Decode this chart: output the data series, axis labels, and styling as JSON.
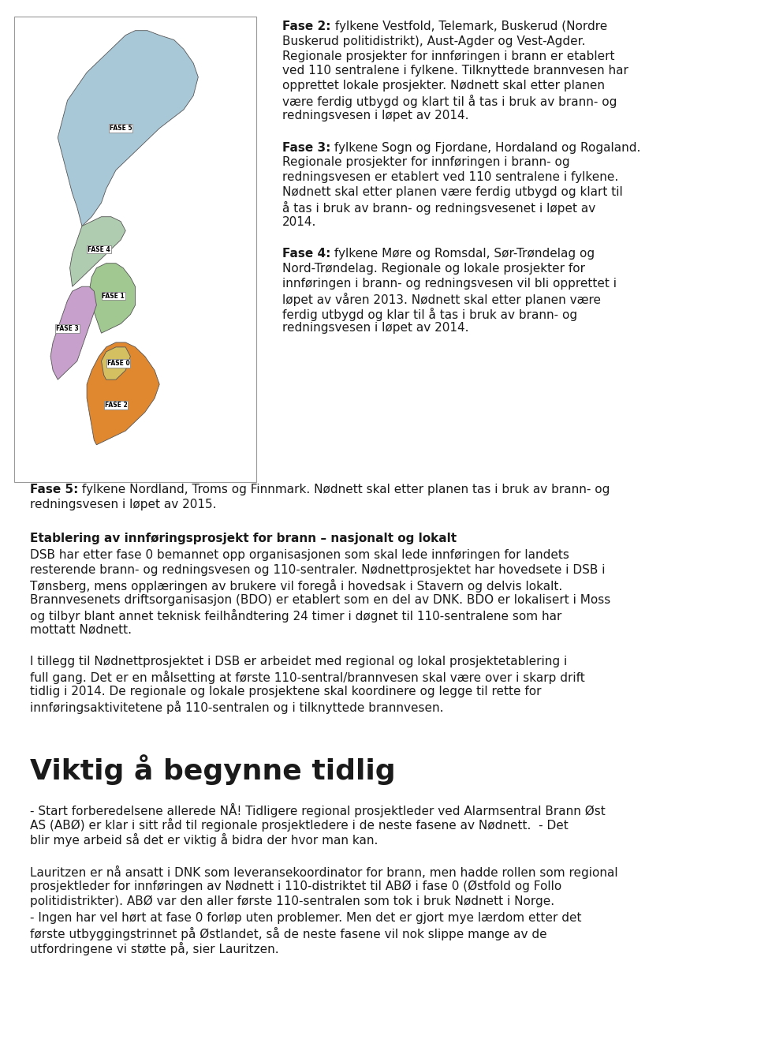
{
  "background_color": "#ffffff",
  "page_width": 9.6,
  "page_height": 13.41,
  "text_color": "#1a1a1a",
  "fase2_title": "Fase 2:",
  "fase2_body": " fylkene Vestfold, Telemark, Buskerud (Nordre Buskerud politidistrikt), Aust-Agder og Vest-Agder. Regionale prosjekter for innføringen i brann er etablert ved 110 sentralene i fylkene. Tilknyttede brannvesen har opprettet lokale prosjekter. Nødnett skal etter planen være ferdig utbygd og klart til å tas i bruk av brann- og redningsvesen i løpet av 2014.",
  "fase3_title": "Fase 3:",
  "fase3_body": " fylkene Sogn og Fjordane, Hordaland og Rogaland. Regionale prosjekter for innføringen i brann- og redningsvesen er etablert ved 110 sentralene i fylkene. Nødnett skal etter planen være ferdig utbygd og klart til å tas i bruk av brann- og redningsvesenet i løpet av 2014.",
  "fase4_title": "Fase 4:",
  "fase4_body": " fylkene Møre og Romsdal, Sør-Trøndelag og Nord-Trøndelag. Regionale og lokale prosjekter for innføringen i brann- og redningsvesen vil bli opprettet i løpet av våren 2013. Nødnett skal etter planen være ferdig utbygd og klar til å tas i bruk av brann- og redningsvesen i løpet av 2014.",
  "fase5_title": "Fase 5:",
  "fase5_body": " fylkene Nordland, Troms og Finnmark. Nødnett skal etter planen tas i bruk av brann- og redningsvesen i løpet av 2015.",
  "etablering_title": "Etablering av innføringsprosjekt for brann – nasjonalt og lokalt",
  "etablering_body": "DSB har etter fase 0 bemannet opp organisasjonen som skal lede innføringen for landets resterende brann- og redningsvesen og 110-sentraler. Nødnettprosjektet har hovedsete i DSB i Tønsberg, mens opplæringen av brukere vil foregå i hovedsak i Stavern og delvis lokalt. Brannvesenets driftsorganisasjon (BDO) er etablert som en del av DNK. BDO er lokalisert i Moss og tilbyr blant annet teknisk feilhåndtering 24 timer i døgnet til 110-sentralene som har mottatt Nødnett.",
  "para2_body": "I tillegg til Nødnettprosjektet i DSB er arbeidet med regional og lokal prosjektetablering i full gang. Det er en målsetting at første 110-sentral/brannvesen skal være over i skarp drift tidlig i 2014. De regionale og lokale prosjektene skal koordinere og legge til rette for innføringsaktivitetene på 110-sentralen og i tilknyttede brannvesen.",
  "viktig_title": "Viktig å begynne tidlig",
  "viktig_body": "- Start forberedelsene allerede NÅ! Tidligere regional prosjektleder ved Alarmsentral Brann Øst AS (ABØ) er klar i sitt råd til regionale prosjektledere i de neste fasene av Nødnett.  - Det blir mye arbeid så det er viktig å bidra der hvor man kan.",
  "lauritzen_body1": "Lauritzen er nå ansatt i DNK som leveransekoordinator for brann, men hadde rollen som regional prosjektleder for innføringen av Nødnett i 110-distriktet til ABØ i fase 0 (Østfold og Follo politidistrikter). ABØ var den aller første 110-sentralen som tok i bruk Nødnett i Norge.",
  "lauritzen_body2": " - Ingen har vel hørt at fase 0 forløp uten problemer. Men det er gjort mye lærdom etter det første utbyggingstrinnet på Østlandet, så de neste fasene vil nok slippe mange av de utfordringene vi støtte på, sier Lauritzen.",
  "font_size_body": 11,
  "font_size_viktig": 26,
  "map_border_color": "#999999",
  "fase5_color": "#a8c8d8",
  "fase4_color": "#b0ccb0",
  "fase3_color": "#c8a0cc",
  "fase1_color": "#a0c890",
  "fase2_color": "#e08830",
  "fase0_color": "#d4c060"
}
